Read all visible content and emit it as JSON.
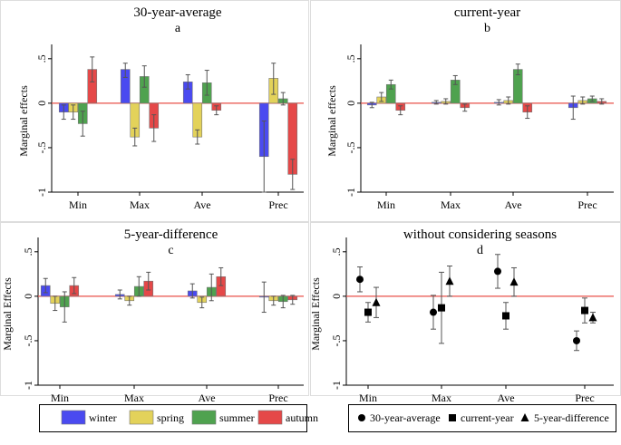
{
  "colors": {
    "winter": "#4a4af0",
    "spring": "#e3d25a",
    "summer": "#4fa24f",
    "autumn": "#e54848",
    "zero_line": "#e8504a",
    "whisker": "#555555",
    "panel_border": "#dddddd",
    "legend_border": "#000000"
  },
  "chart_data": [
    {
      "id": "a",
      "type": "bar",
      "title": "30-year-average",
      "panel_label": "a",
      "ylabel": "Marginal effects",
      "ylim": [
        -1,
        0.6
      ],
      "yticks": [
        "-1",
        "-.5",
        "0",
        ".5"
      ],
      "categories": [
        "Min",
        "Max",
        "Ave",
        "Prec"
      ],
      "series": [
        {
          "name": "winter",
          "values": [
            -0.1,
            0.38,
            0.24,
            -0.6
          ],
          "ci": [
            [
              -0.18,
              -0.02
            ],
            [
              0.29,
              0.45
            ],
            [
              0.16,
              0.32
            ],
            [
              -1.0,
              -0.2
            ]
          ]
        },
        {
          "name": "spring",
          "values": [
            -0.1,
            -0.38,
            -0.38,
            0.28
          ],
          "ci": [
            [
              -0.18,
              -0.02
            ],
            [
              -0.48,
              -0.28
            ],
            [
              -0.46,
              -0.3
            ],
            [
              0.1,
              0.45
            ]
          ]
        },
        {
          "name": "summer",
          "values": [
            -0.23,
            0.3,
            0.23,
            0.05
          ],
          "ci": [
            [
              -0.37,
              -0.09
            ],
            [
              0.18,
              0.42
            ],
            [
              0.09,
              0.37
            ],
            [
              -0.02,
              0.12
            ]
          ]
        },
        {
          "name": "autumn",
          "values": [
            0.38,
            -0.28,
            -0.08,
            -0.8
          ],
          "ci": [
            [
              0.24,
              0.52
            ],
            [
              -0.43,
              -0.13
            ],
            [
              -0.13,
              -0.03
            ],
            [
              -0.97,
              -0.63
            ]
          ]
        }
      ]
    },
    {
      "id": "b",
      "type": "bar",
      "title": "current-year",
      "panel_label": "b",
      "ylabel": "Marginal effects",
      "ylim": [
        -1,
        0.6
      ],
      "yticks": [
        "-1",
        "-.5",
        "0",
        ".5"
      ],
      "categories": [
        "Min",
        "Max",
        "Ave",
        "Prec"
      ],
      "series": [
        {
          "name": "winter",
          "values": [
            -0.02,
            0.01,
            0.01,
            -0.05
          ],
          "ci": [
            [
              -0.05,
              0.01
            ],
            [
              -0.01,
              0.03
            ],
            [
              -0.02,
              0.04
            ],
            [
              -0.18,
              0.08
            ]
          ]
        },
        {
          "name": "spring",
          "values": [
            0.07,
            0.02,
            0.03,
            0.03
          ],
          "ci": [
            [
              0.02,
              0.12
            ],
            [
              -0.01,
              0.05
            ],
            [
              -0.01,
              0.07
            ],
            [
              -0.01,
              0.07
            ]
          ]
        },
        {
          "name": "summer",
          "values": [
            0.21,
            0.26,
            0.38,
            0.05
          ],
          "ci": [
            [
              0.16,
              0.26
            ],
            [
              0.21,
              0.31
            ],
            [
              0.32,
              0.44
            ],
            [
              0.02,
              0.08
            ]
          ]
        },
        {
          "name": "autumn",
          "values": [
            -0.08,
            -0.05,
            -0.1,
            0.02
          ],
          "ci": [
            [
              -0.13,
              -0.03
            ],
            [
              -0.09,
              -0.01
            ],
            [
              -0.17,
              -0.03
            ],
            [
              -0.01,
              0.05
            ]
          ]
        }
      ]
    },
    {
      "id": "c",
      "type": "bar",
      "title": "5-year-difference",
      "panel_label": "c",
      "ylabel": "Marginal Effects",
      "ylim": [
        -1,
        0.6
      ],
      "yticks": [
        "-1",
        "-.5",
        "0",
        ".5"
      ],
      "categories": [
        "Min",
        "Max",
        "Ave",
        "Prec"
      ],
      "series": [
        {
          "name": "winter",
          "values": [
            0.12,
            0.02,
            0.06,
            -0.01
          ],
          "ci": [
            [
              0.04,
              0.2
            ],
            [
              -0.03,
              0.07
            ],
            [
              -0.02,
              0.14
            ],
            [
              -0.18,
              0.16
            ]
          ]
        },
        {
          "name": "spring",
          "values": [
            -0.08,
            -0.05,
            -0.07,
            -0.05
          ],
          "ci": [
            [
              -0.16,
              0.0
            ],
            [
              -0.1,
              0.0
            ],
            [
              -0.13,
              -0.01
            ],
            [
              -0.1,
              0.0
            ]
          ]
        },
        {
          "name": "summer",
          "values": [
            -0.12,
            0.11,
            0.1,
            -0.06
          ],
          "ci": [
            [
              -0.29,
              0.05
            ],
            [
              0.0,
              0.22
            ],
            [
              -0.05,
              0.25
            ],
            [
              -0.13,
              0.01
            ]
          ]
        },
        {
          "name": "autumn",
          "values": [
            0.12,
            0.17,
            0.22,
            -0.04
          ],
          "ci": [
            [
              0.03,
              0.21
            ],
            [
              0.07,
              0.27
            ],
            [
              0.12,
              0.32
            ],
            [
              -0.09,
              0.01
            ]
          ]
        }
      ]
    },
    {
      "id": "d",
      "type": "scatter",
      "title": "without considering seasons",
      "panel_label": "d",
      "ylabel": "Marginal Effects",
      "ylim": [
        -1,
        0.6
      ],
      "yticks": [
        "-1",
        "-.5",
        "0",
        ".5"
      ],
      "categories": [
        "Min",
        "Max",
        "Ave",
        "Prec"
      ],
      "series": [
        {
          "name": "30-year-average",
          "marker": "circle",
          "values": [
            0.19,
            -0.18,
            0.28,
            -0.5
          ],
          "ci": [
            [
              0.05,
              0.33
            ],
            [
              -0.37,
              0.01
            ],
            [
              0.09,
              0.47
            ],
            [
              -0.61,
              -0.39
            ]
          ]
        },
        {
          "name": "current-year",
          "marker": "square",
          "values": [
            -0.18,
            -0.13,
            -0.22,
            -0.16
          ],
          "ci": [
            [
              -0.29,
              -0.07
            ],
            [
              -0.53,
              0.27
            ],
            [
              -0.37,
              -0.07
            ],
            [
              -0.3,
              -0.02
            ]
          ]
        },
        {
          "name": "5-year-difference",
          "marker": "triangle",
          "values": [
            -0.07,
            0.17,
            0.16,
            -0.24
          ],
          "ci": [
            [
              -0.24,
              0.1
            ],
            [
              0.0,
              0.34
            ],
            [
              0.0,
              0.32
            ],
            [
              -0.3,
              -0.18
            ]
          ]
        }
      ]
    }
  ],
  "legend_seasons": [
    "winter",
    "spring",
    "summer",
    "autumn"
  ],
  "legend_models": [
    "30-year-average",
    "current-year",
    "5-year-difference"
  ]
}
